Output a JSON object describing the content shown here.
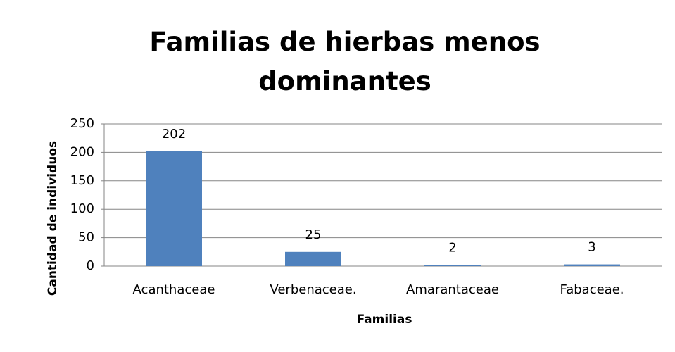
{
  "chart_data": {
    "type": "bar",
    "title": "Familias de hierbas menos dominantes",
    "categories": [
      "Acanthaceae",
      "Verbenaceae.",
      "Amarantaceae",
      "Fabaceae."
    ],
    "values": [
      202,
      25,
      2,
      3
    ],
    "color": "#4f81bd",
    "xlabel": "Familias",
    "ylabel": "Cantidad de individuos",
    "ylim": [
      0,
      250
    ],
    "yticks": [
      0,
      50,
      100,
      150,
      200,
      250
    ],
    "grid": true
  }
}
